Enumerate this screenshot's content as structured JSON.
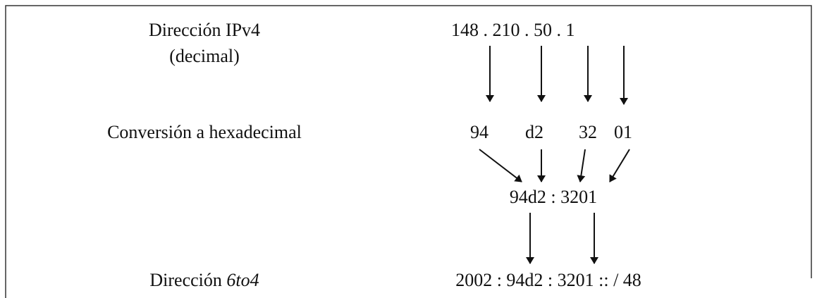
{
  "labels": {
    "ipv4": "Dirección IPv4",
    "ipv4_note": "(decimal)",
    "hex": "Conversión a hexadecimal",
    "sixtofour": {
      "text": "Dirección",
      "italic": "6to4"
    }
  },
  "values": {
    "ipv4": "148 . 210 . 50 . 1",
    "hex": [
      "94",
      "d2",
      "32",
      "01"
    ],
    "joined": "94d2 : 3201",
    "sixtofour": "2002 : 94d2 : 3201 :: / 48"
  }
}
